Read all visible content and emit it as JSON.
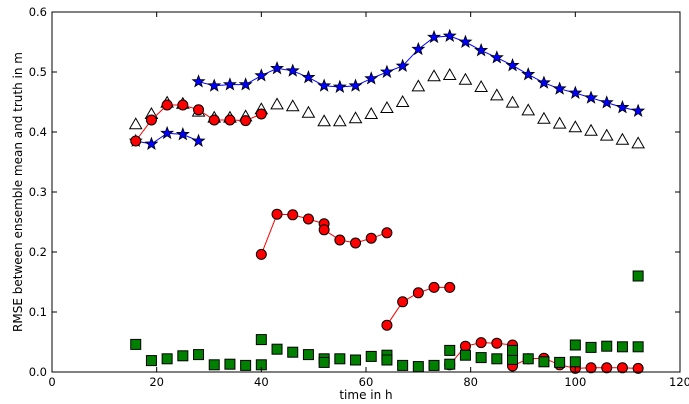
{
  "chart_data": {
    "type": "scatter",
    "xlabel": "time in h",
    "ylabel": "RMSE between ensemble mean and truth in m",
    "xlim": [
      0,
      120
    ],
    "ylim": [
      0.0,
      0.6
    ],
    "xticks": [
      "0",
      "20",
      "40",
      "60",
      "80",
      "100",
      "120"
    ],
    "yticks": [
      "0.0",
      "0.1",
      "0.2",
      "0.3",
      "0.4",
      "0.5",
      "0.6"
    ],
    "grid": false,
    "series": [
      {
        "marker": "star",
        "color": "#0000ff",
        "line": true,
        "segments": [
          [
            [
              16,
              0.385
            ],
            [
              19,
              0.38
            ],
            [
              22,
              0.398
            ],
            [
              25,
              0.396
            ],
            [
              28,
              0.385
            ]
          ],
          [
            [
              28,
              0.484
            ],
            [
              31,
              0.477
            ],
            [
              34,
              0.479
            ],
            [
              37,
              0.479
            ],
            [
              40,
              0.494
            ],
            [
              43,
              0.506
            ],
            [
              46,
              0.502
            ],
            [
              49,
              0.491
            ],
            [
              52,
              0.477
            ],
            [
              55,
              0.475
            ],
            [
              58,
              0.477
            ],
            [
              61,
              0.489
            ],
            [
              64,
              0.5
            ],
            [
              67,
              0.51
            ],
            [
              70,
              0.538
            ],
            [
              73,
              0.558
            ],
            [
              76,
              0.56
            ],
            [
              79,
              0.55
            ],
            [
              82,
              0.536
            ],
            [
              85,
              0.524
            ],
            [
              88,
              0.511
            ],
            [
              91,
              0.496
            ],
            [
              94,
              0.482
            ],
            [
              97,
              0.472
            ],
            [
              100,
              0.465
            ],
            [
              103,
              0.457
            ],
            [
              106,
              0.449
            ],
            [
              109,
              0.441
            ],
            [
              112,
              0.435
            ]
          ]
        ]
      },
      {
        "marker": "triangle",
        "color": "#ffffff",
        "line": false,
        "points": [
          [
            16,
            0.413
          ],
          [
            19,
            0.43
          ],
          [
            22,
            0.449
          ],
          [
            25,
            0.447
          ],
          [
            28,
            0.434
          ],
          [
            31,
            0.424
          ],
          [
            34,
            0.424
          ],
          [
            37,
            0.426
          ],
          [
            40,
            0.438
          ],
          [
            43,
            0.446
          ],
          [
            46,
            0.443
          ],
          [
            49,
            0.432
          ],
          [
            52,
            0.418
          ],
          [
            55,
            0.418
          ],
          [
            58,
            0.423
          ],
          [
            61,
            0.43
          ],
          [
            64,
            0.44
          ],
          [
            67,
            0.45
          ],
          [
            70,
            0.476
          ],
          [
            73,
            0.493
          ],
          [
            76,
            0.495
          ],
          [
            79,
            0.487
          ],
          [
            82,
            0.475
          ],
          [
            85,
            0.461
          ],
          [
            88,
            0.449
          ],
          [
            91,
            0.436
          ],
          [
            94,
            0.422
          ],
          [
            97,
            0.414
          ],
          [
            100,
            0.408
          ],
          [
            103,
            0.402
          ],
          [
            106,
            0.394
          ],
          [
            109,
            0.387
          ],
          [
            112,
            0.381
          ]
        ]
      },
      {
        "marker": "circle",
        "color": "#ff0000",
        "line": true,
        "segments": [
          [
            [
              16,
              0.385
            ],
            [
              19,
              0.42
            ],
            [
              22,
              0.445
            ],
            [
              25,
              0.445
            ],
            [
              28,
              0.437
            ],
            [
              31,
              0.42
            ],
            [
              34,
              0.42
            ],
            [
              37,
              0.419
            ],
            [
              40,
              0.43
            ]
          ],
          [
            [
              40,
              0.196
            ],
            [
              43,
              0.263
            ],
            [
              46,
              0.262
            ],
            [
              49,
              0.255
            ],
            [
              52,
              0.247
            ],
            [
              52,
              0.237
            ],
            [
              55,
              0.22
            ],
            [
              58,
              0.215
            ],
            [
              61,
              0.223
            ],
            [
              64,
              0.232
            ]
          ],
          [
            [
              64,
              0.078
            ],
            [
              67,
              0.117
            ],
            [
              70,
              0.132
            ],
            [
              73,
              0.141
            ],
            [
              76,
              0.141
            ]
          ],
          [
            [
              76,
              0.012
            ],
            [
              79,
              0.043
            ],
            [
              82,
              0.049
            ],
            [
              85,
              0.048
            ],
            [
              88,
              0.045
            ],
            [
              88,
              0.01
            ],
            [
              91,
              0.022
            ],
            [
              94,
              0.023
            ],
            [
              97,
              0.012
            ],
            [
              100,
              0.006
            ],
            [
              103,
              0.007
            ],
            [
              106,
              0.007
            ],
            [
              109,
              0.007
            ],
            [
              112,
              0.006
            ]
          ]
        ]
      },
      {
        "marker": "square",
        "color": "#008000",
        "line": false,
        "points": [
          [
            16,
            0.046
          ],
          [
            19,
            0.019
          ],
          [
            22,
            0.022
          ],
          [
            25,
            0.027
          ],
          [
            28,
            0.029
          ],
          [
            31,
            0.012
          ],
          [
            34,
            0.013
          ],
          [
            37,
            0.011
          ],
          [
            40,
            0.012
          ],
          [
            40,
            0.054
          ],
          [
            43,
            0.038
          ],
          [
            46,
            0.033
          ],
          [
            49,
            0.029
          ],
          [
            52,
            0.022
          ],
          [
            52,
            0.016
          ],
          [
            55,
            0.022
          ],
          [
            58,
            0.02
          ],
          [
            61,
            0.026
          ],
          [
            64,
            0.028
          ],
          [
            64,
            0.02
          ],
          [
            67,
            0.011
          ],
          [
            70,
            0.009
          ],
          [
            73,
            0.011
          ],
          [
            76,
            0.013
          ],
          [
            76,
            0.036
          ],
          [
            79,
            0.028
          ],
          [
            82,
            0.024
          ],
          [
            85,
            0.022
          ],
          [
            88,
            0.021
          ],
          [
            88,
            0.036
          ],
          [
            91,
            0.022
          ],
          [
            94,
            0.017
          ],
          [
            97,
            0.016
          ],
          [
            100,
            0.017
          ],
          [
            100,
            0.045
          ],
          [
            103,
            0.041
          ],
          [
            106,
            0.043
          ],
          [
            109,
            0.042
          ],
          [
            112,
            0.042
          ],
          [
            112,
            0.16
          ]
        ]
      }
    ]
  }
}
